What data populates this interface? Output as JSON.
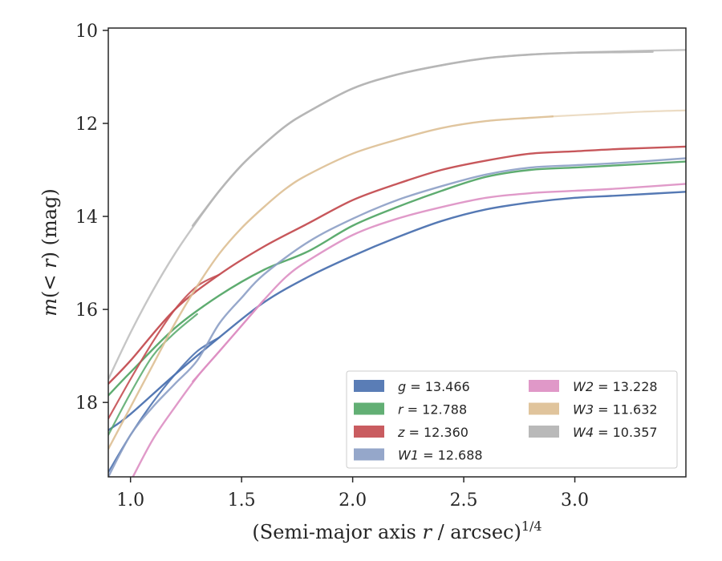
{
  "chart_data": {
    "type": "line",
    "title": "",
    "xlabel_parts": [
      "(Semi-major axis ",
      "r",
      " / arcsec)",
      "1/4"
    ],
    "ylabel_parts": [
      "m",
      "(< ",
      "r",
      ") (mag)"
    ],
    "xlim": [
      0.9,
      3.5
    ],
    "ylim": [
      19.6,
      9.95
    ],
    "y_inverted": true,
    "xticks": [
      1.0,
      1.5,
      2.0,
      2.5,
      3.0
    ],
    "xtick_labels": [
      "1.0",
      "1.5",
      "2.0",
      "2.5",
      "3.0"
    ],
    "yticks": [
      10,
      12,
      14,
      16,
      18
    ],
    "ytick_labels": [
      "10",
      "12",
      "14",
      "16",
      "18"
    ],
    "grid": false,
    "legend_placement": "lower-right",
    "series": [
      {
        "name": "g = 13.466",
        "var": "g",
        "value": "13.466",
        "italic": true,
        "color": "#4c72b0",
        "curves": [
          {
            "x": [
              0.9,
              1.0,
              1.2,
              1.4,
              1.6,
              1.8,
              2.0,
              2.2,
              2.4,
              2.6,
              2.8,
              3.0,
              3.2,
              3.5
            ],
            "y": [
              18.6,
              18.25,
              17.4,
              16.6,
              15.85,
              15.3,
              14.85,
              14.45,
              14.1,
              13.85,
              13.7,
              13.6,
              13.55,
              13.47
            ],
            "alpha": 0.95,
            "width": 2.4
          },
          {
            "x": [
              0.9,
              1.0,
              1.1,
              1.2,
              1.3,
              1.4
            ],
            "y": [
              19.5,
              18.7,
              18.0,
              17.4,
              16.9,
              16.6
            ],
            "alpha": 0.9,
            "width": 2.2
          }
        ]
      },
      {
        "name": "r = 12.788",
        "var": "r",
        "value": "12.788",
        "italic": true,
        "color": "#55a868",
        "curves": [
          {
            "x": [
              0.9,
              1.0,
              1.2,
              1.4,
              1.6,
              1.8,
              2.0,
              2.2,
              2.4,
              2.6,
              2.8,
              3.0,
              3.2,
              3.5
            ],
            "y": [
              17.85,
              17.35,
              16.4,
              15.7,
              15.15,
              14.75,
              14.2,
              13.8,
              13.45,
              13.15,
              13.0,
              12.95,
              12.9,
              12.82
            ],
            "alpha": 0.95,
            "width": 2.4
          },
          {
            "x": [
              0.9,
              1.0,
              1.1,
              1.2,
              1.3
            ],
            "y": [
              18.7,
              17.8,
              17.0,
              16.5,
              16.1
            ],
            "alpha": 0.85,
            "width": 2.2
          }
        ]
      },
      {
        "name": "z = 12.360",
        "var": "z",
        "value": "12.360",
        "italic": true,
        "color": "#c44e52",
        "curves": [
          {
            "x": [
              0.9,
              1.0,
              1.2,
              1.4,
              1.6,
              1.8,
              2.0,
              2.2,
              2.4,
              2.6,
              2.8,
              3.0,
              3.2,
              3.5
            ],
            "y": [
              17.6,
              17.1,
              16.0,
              15.25,
              14.65,
              14.15,
              13.65,
              13.3,
              13.0,
              12.8,
              12.65,
              12.6,
              12.55,
              12.5
            ],
            "alpha": 0.95,
            "width": 2.4
          },
          {
            "x": [
              0.9,
              1.0,
              1.1,
              1.2,
              1.3,
              1.4
            ],
            "y": [
              18.35,
              17.5,
              16.7,
              16.0,
              15.5,
              15.25
            ],
            "alpha": 0.9,
            "width": 2.2
          }
        ]
      },
      {
        "name": "W1 = 12.688",
        "var": "W1",
        "value": "12.688",
        "italic": true,
        "color": "#8c9fc5",
        "curves": [
          {
            "x": [
              0.9,
              1.0,
              1.1,
              1.2,
              1.3,
              1.4,
              1.5,
              1.6,
              1.8,
              2.0,
              2.2,
              2.4,
              2.6,
              2.8,
              3.0,
              3.2,
              3.5
            ],
            "y": [
              19.6,
              18.7,
              18.1,
              17.6,
              17.1,
              16.3,
              15.75,
              15.25,
              14.55,
              14.05,
              13.65,
              13.35,
              13.1,
              12.95,
              12.9,
              12.85,
              12.75
            ],
            "alpha": 0.9,
            "width": 2.4
          }
        ]
      },
      {
        "name": "W2 = 13.228",
        "var": "W2",
        "value": "13.228",
        "italic": true,
        "color": "#dd8fc3",
        "curves": [
          {
            "x": [
              1.0,
              1.1,
              1.2,
              1.3,
              1.4,
              1.5,
              1.6,
              1.7,
              1.8,
              2.0,
              2.2,
              2.4,
              2.6,
              2.8,
              3.0,
              3.2,
              3.5
            ],
            "y": [
              19.7,
              18.8,
              18.1,
              17.45,
              16.9,
              16.35,
              15.8,
              15.3,
              14.95,
              14.4,
              14.05,
              13.8,
              13.6,
              13.5,
              13.45,
              13.4,
              13.3
            ],
            "alpha": 0.9,
            "width": 2.4
          },
          {
            "x": [
              1.28,
              1.4,
              1.5,
              1.6
            ],
            "y": [
              17.55,
              16.9,
              16.35,
              15.8
            ],
            "alpha": 0.95,
            "width": 2.2
          }
        ]
      },
      {
        "name": "W3 = 11.632",
        "var": "W3",
        "value": "11.632",
        "italic": true,
        "color": "#ddbf94",
        "curves": [
          {
            "x": [
              0.9,
              1.0,
              1.1,
              1.2,
              1.3,
              1.4,
              1.5,
              1.6,
              1.7,
              1.8,
              2.0,
              2.2,
              2.4,
              2.6,
              2.8,
              2.9
            ],
            "y": [
              19.0,
              18.1,
              17.2,
              16.3,
              15.5,
              14.8,
              14.25,
              13.8,
              13.4,
              13.1,
              12.65,
              12.35,
              12.1,
              11.95,
              11.88,
              11.85
            ],
            "alpha": 0.9,
            "width": 2.4
          },
          {
            "x": [
              2.9,
              3.1,
              3.3,
              3.5
            ],
            "y": [
              11.85,
              11.8,
              11.75,
              11.72
            ],
            "alpha": 0.55,
            "width": 2.2
          }
        ]
      },
      {
        "name": "W4 = 10.357",
        "var": "W4",
        "value": "10.357",
        "italic": true,
        "color": "#b3b3b3",
        "curves": [
          {
            "x": [
              0.9,
              1.0,
              1.1,
              1.2,
              1.3,
              1.4,
              1.5,
              1.6,
              1.7,
              1.8,
              2.0,
              2.2,
              2.4,
              2.6,
              2.8,
              3.0,
              3.2,
              3.5
            ],
            "y": [
              17.5,
              16.5,
              15.6,
              14.8,
              14.1,
              13.45,
              12.9,
              12.45,
              12.05,
              11.75,
              11.25,
              10.95,
              10.75,
              10.6,
              10.52,
              10.48,
              10.45,
              10.42
            ],
            "alpha": 0.75,
            "width": 2.4
          },
          {
            "x": [
              1.28,
              1.4,
              1.5,
              1.6,
              1.7,
              1.8,
              2.0,
              2.2,
              2.4,
              2.6,
              2.8,
              3.0,
              3.2,
              3.35
            ],
            "y": [
              14.2,
              13.45,
              12.9,
              12.45,
              12.05,
              11.75,
              11.25,
              10.95,
              10.75,
              10.6,
              10.52,
              10.48,
              10.47,
              10.46
            ],
            "alpha": 0.85,
            "width": 2.6
          }
        ]
      }
    ]
  }
}
